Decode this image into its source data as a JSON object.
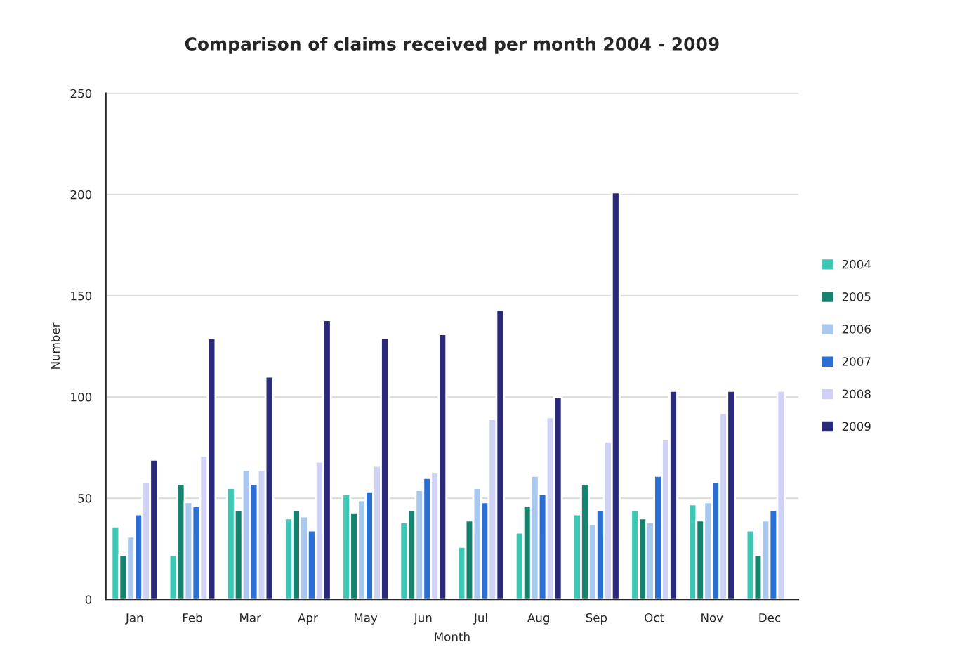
{
  "chart_data": {
    "type": "bar",
    "title": "Comparison of claims received per month 2004 - 2009",
    "xlabel": "Month",
    "ylabel": "Number",
    "categories": [
      "Jan",
      "Feb",
      "Mar",
      "Apr",
      "May",
      "Jun",
      "Jul",
      "Aug",
      "Sep",
      "Oct",
      "Nov",
      "Dec"
    ],
    "series": [
      {
        "name": "2004",
        "color": "#3cc8b4",
        "values": [
          36,
          22,
          55,
          40,
          52,
          38,
          26,
          33,
          42,
          44,
          47,
          34
        ]
      },
      {
        "name": "2005",
        "color": "#16836e",
        "values": [
          22,
          57,
          44,
          44,
          43,
          44,
          39,
          46,
          57,
          40,
          39,
          22
        ]
      },
      {
        "name": "2006",
        "color": "#a9c8f0",
        "values": [
          31,
          48,
          64,
          41,
          49,
          54,
          55,
          61,
          37,
          38,
          48,
          39
        ]
      },
      {
        "name": "2007",
        "color": "#2a6fd6",
        "values": [
          42,
          46,
          57,
          34,
          53,
          60,
          48,
          52,
          44,
          61,
          58,
          44
        ]
      },
      {
        "name": "2008",
        "color": "#cfd2f5",
        "values": [
          58,
          71,
          64,
          68,
          66,
          63,
          89,
          90,
          78,
          79,
          92,
          103
        ]
      },
      {
        "name": "2009",
        "color": "#2b2a7a",
        "values": [
          69,
          129,
          110,
          138,
          129,
          131,
          143,
          100,
          201,
          103,
          103,
          null
        ]
      }
    ],
    "ylim": [
      0,
      250
    ],
    "yticks": [
      0,
      50,
      100,
      150,
      200,
      250
    ],
    "grid": "y",
    "legend": "right"
  }
}
